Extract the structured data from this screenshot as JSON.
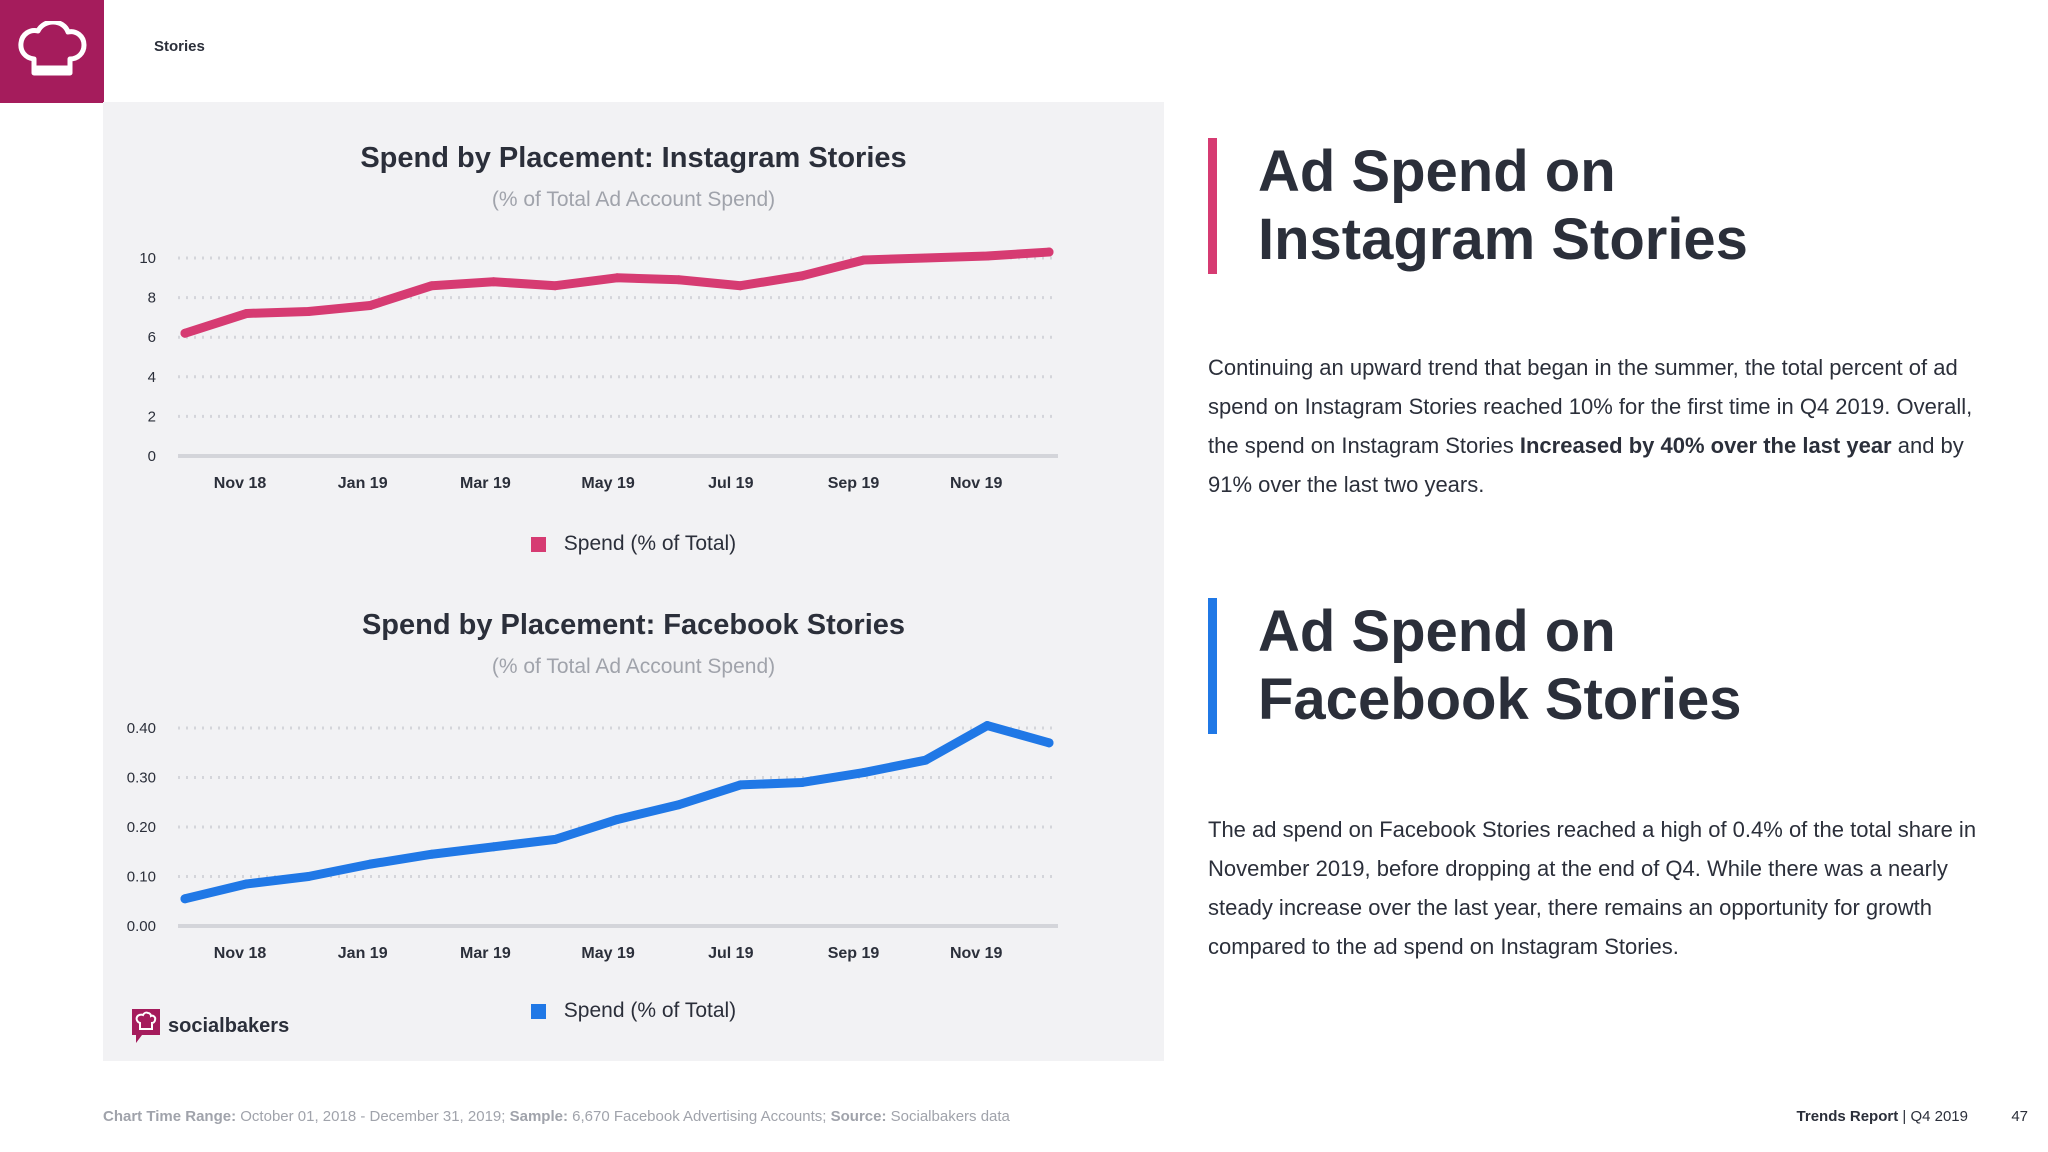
{
  "header": {
    "section": "Stories"
  },
  "colors": {
    "instagram": "#d63b72",
    "facebook": "#2078e6",
    "brand": "#a51c5c"
  },
  "chart_data": [
    {
      "type": "line",
      "title": "Spend by Placement: Instagram Stories",
      "subtitle": "(% of Total Ad Account Spend)",
      "x_tick_labels": [
        "Nov 18",
        "Jan 19",
        "Mar 19",
        "May 19",
        "Jul 19",
        "Sep 19",
        "Nov 19"
      ],
      "y_tick_labels": [
        "0",
        "2",
        "4",
        "6",
        "8",
        "10"
      ],
      "ylim": [
        0,
        10
      ],
      "grid": true,
      "legend": "bottom-center",
      "series": [
        {
          "name": "Spend (% of Total)",
          "values": [
            6.2,
            7.2,
            7.3,
            7.6,
            8.6,
            8.8,
            8.6,
            9.0,
            8.9,
            8.6,
            9.1,
            9.9,
            10.0,
            10.1,
            10.3
          ]
        }
      ]
    },
    {
      "type": "line",
      "title": "Spend by Placement: Facebook Stories",
      "subtitle": "(% of Total Ad Account Spend)",
      "x_tick_labels": [
        "Nov 18",
        "Jan 19",
        "Mar 19",
        "May 19",
        "Jul 19",
        "Sep 19",
        "Nov 19"
      ],
      "y_tick_labels": [
        "0.00",
        "0.10",
        "0.20",
        "0.30",
        "0.40"
      ],
      "ylim": [
        0,
        0.4
      ],
      "grid": true,
      "legend": "bottom-center",
      "series": [
        {
          "name": "Spend (% of Total)",
          "values": [
            0.055,
            0.085,
            0.1,
            0.125,
            0.145,
            0.16,
            0.175,
            0.215,
            0.245,
            0.285,
            0.29,
            0.31,
            0.335,
            0.405,
            0.37
          ]
        }
      ]
    }
  ],
  "brand": {
    "name": "socialbakers"
  },
  "sections": [
    {
      "heading": "Ad Spend on\nInstagram Stories",
      "body_parts": [
        "Continuing an upward trend that began in the summer, the total percent of ad spend on Instagram Stories reached 10% for the first time in Q4 2019. Overall, the spend on Instagram Stories ",
        "Increased by 40% over the last year",
        " and by 91% over the last two years."
      ]
    },
    {
      "heading": "Ad Spend on\nFacebook Stories",
      "body": "The ad spend on Facebook Stories reached a high of 0.4% of the total share in November 2019, before dropping at the end of Q4. While there was a nearly steady increase over the last year, there remains an opportunity for growth compared to the ad spend on Instagram Stories."
    }
  ],
  "footer": {
    "range_label": "Chart Time Range:",
    "range_value": " October  01, 2018 - December 31, 2019; ",
    "sample_label": "Sample:",
    "sample_value": " 6,670 Facebook Advertising Accounts; ",
    "source_label": "Source:",
    "source_value": " Socialbakers data",
    "report": "Trends Report",
    "period": " | Q4 2019",
    "page": "47"
  }
}
